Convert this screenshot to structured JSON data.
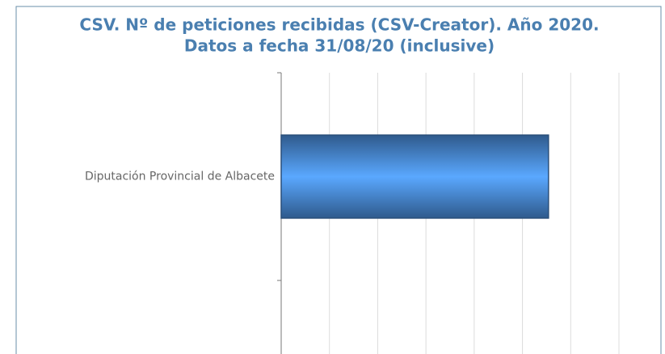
{
  "chart_data": {
    "type": "hbar",
    "title": [
      "CSV. Nº de peticiones recibidas (CSV-Creator). Año 2020.",
      "Datos a fecha 31/08/20 (inclusive)"
    ],
    "categories": [
      "Diputación Provincial de Albacete"
    ],
    "values": [
      5.54
    ],
    "color": "#5aa8ff",
    "xlim": [
      0,
      7
    ],
    "xticks": [
      0,
      1,
      2,
      3,
      4,
      5,
      6,
      7
    ],
    "grid": true
  }
}
